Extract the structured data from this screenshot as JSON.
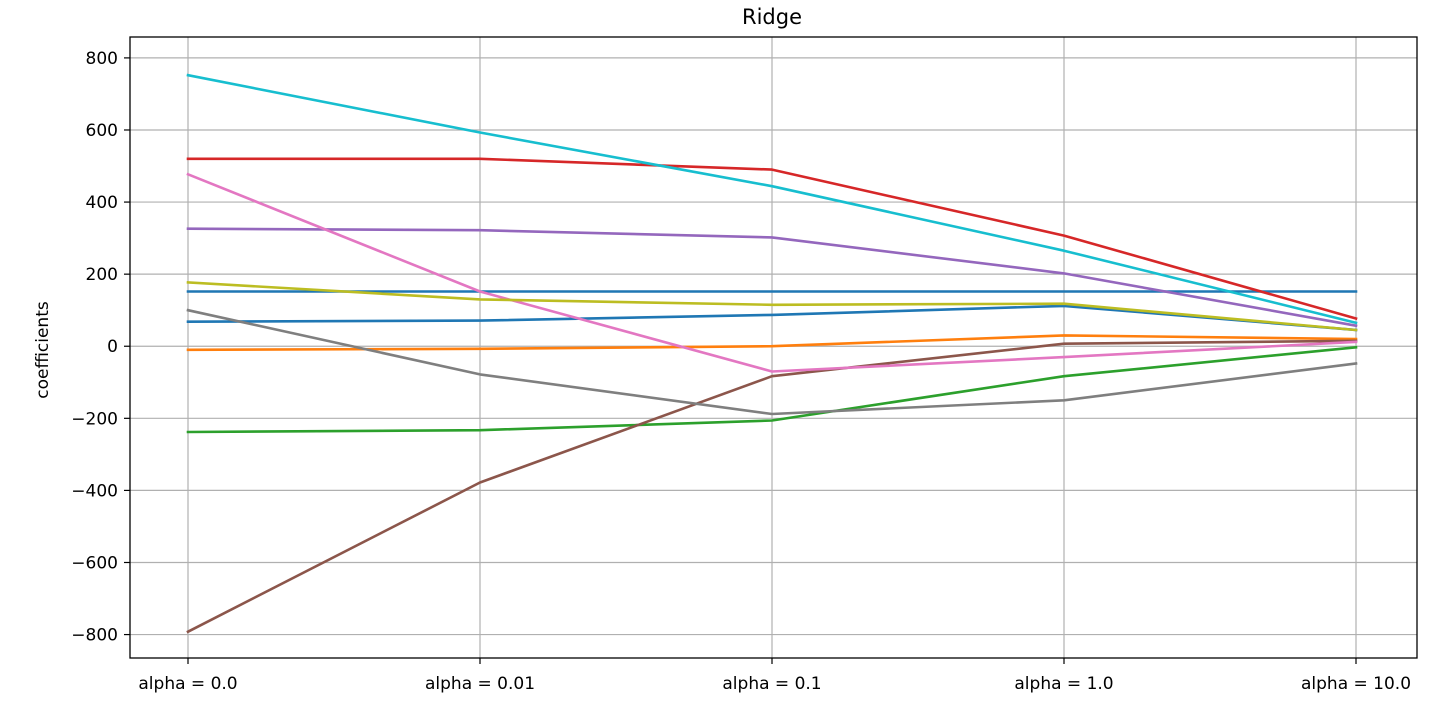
{
  "chart_data": {
    "type": "line",
    "title": "Ridge",
    "xlabel": "",
    "ylabel": "coefficients",
    "categories": [
      "alpha = 0.0",
      "alpha = 0.01",
      "alpha = 0.1",
      "alpha = 1.0",
      "alpha = 10.0"
    ],
    "ylim": [
      -865,
      858
    ],
    "yticks": [
      -800,
      -600,
      -400,
      -200,
      0,
      200,
      400,
      600,
      800
    ],
    "ytick_labels": [
      "−800",
      "−600",
      "−400",
      "−200",
      "0",
      "200",
      "400",
      "600",
      "800"
    ],
    "grid": true,
    "series": [
      {
        "color": "#1f77b4",
        "values": [
          152,
          152,
          152,
          152,
          152
        ]
      },
      {
        "color": "#1f77b4",
        "values": [
          68,
          71,
          87,
          112,
          45
        ]
      },
      {
        "color": "#ff7f0e",
        "values": [
          -10,
          -7,
          0,
          30,
          20
        ]
      },
      {
        "color": "#2ca02c",
        "values": [
          -238,
          -233,
          -206,
          -83,
          -3
        ]
      },
      {
        "color": "#d62728",
        "values": [
          520,
          520,
          490,
          307,
          77
        ]
      },
      {
        "color": "#9467bd",
        "values": [
          326,
          322,
          302,
          202,
          57
        ]
      },
      {
        "color": "#8c564b",
        "values": [
          -792,
          -378,
          -83,
          7,
          15
        ]
      },
      {
        "color": "#e377c2",
        "values": [
          477,
          152,
          -70,
          -30,
          12
        ]
      },
      {
        "color": "#7f7f7f",
        "values": [
          100,
          -78,
          -188,
          -150,
          -48
        ]
      },
      {
        "color": "#bcbd22",
        "values": [
          177,
          130,
          115,
          118,
          45
        ]
      },
      {
        "color": "#17becf",
        "values": [
          752,
          593,
          444,
          265,
          65
        ]
      }
    ]
  }
}
